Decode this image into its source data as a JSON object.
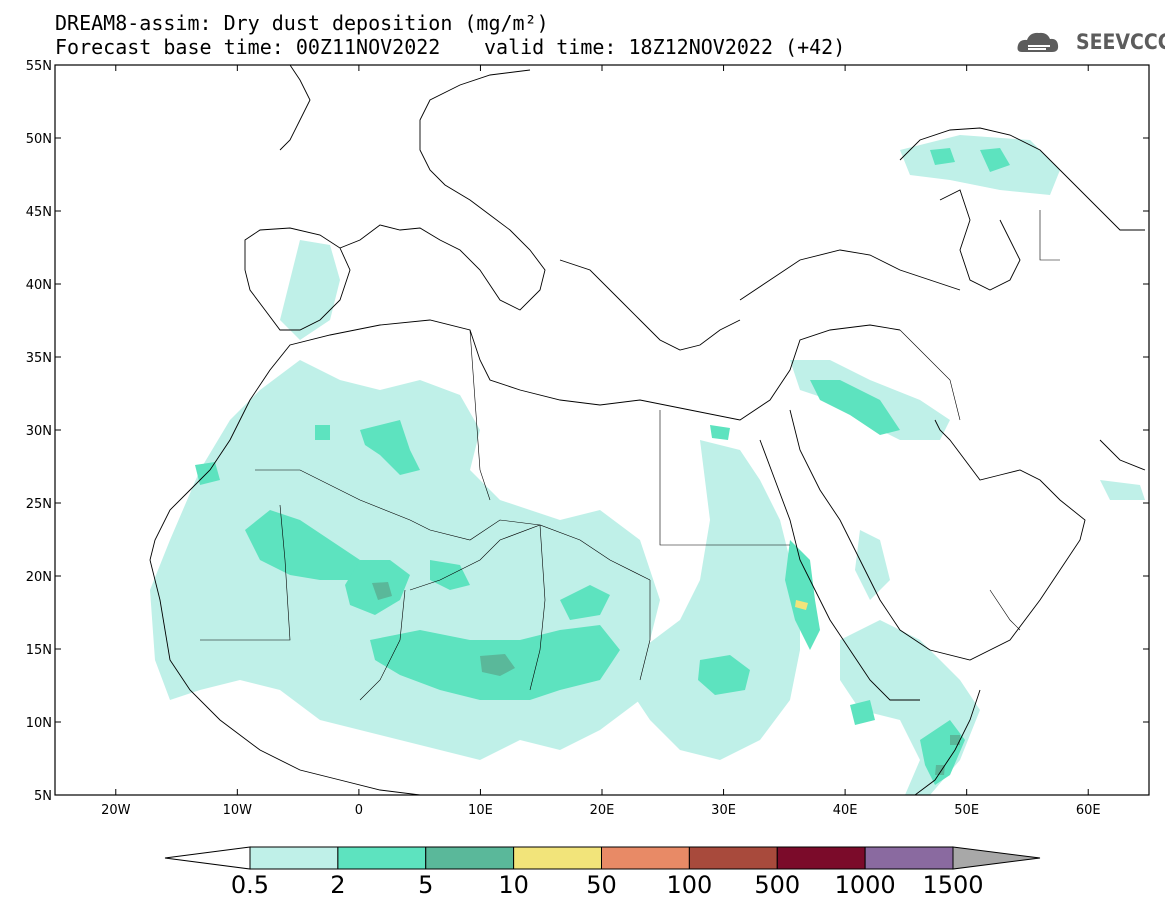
{
  "header": {
    "title_line1": "DREAM8-assim: Dry dust deposition (mg/m²)",
    "title_line2": "Forecast base time: 00Z11NOV2022",
    "valid_time": "valid time: 18Z12NOV2022 (+42)",
    "logo_text": "SEEVCCC",
    "logo_icon": "cloud-icon"
  },
  "map": {
    "type": "contour-map",
    "lon_range": [
      -25,
      65
    ],
    "lat_range": [
      5,
      55
    ],
    "lat_ticks": [
      {
        "value": 55,
        "label": "55N"
      },
      {
        "value": 50,
        "label": "50N"
      },
      {
        "value": 45,
        "label": "45N"
      },
      {
        "value": 40,
        "label": "40N"
      },
      {
        "value": 35,
        "label": "35N"
      },
      {
        "value": 30,
        "label": "30N"
      },
      {
        "value": 25,
        "label": "25N"
      },
      {
        "value": 20,
        "label": "20N"
      },
      {
        "value": 15,
        "label": "15N"
      },
      {
        "value": 10,
        "label": "10N"
      },
      {
        "value": 5,
        "label": "5N"
      }
    ],
    "lon_ticks": [
      {
        "value": -20,
        "label": "20W"
      },
      {
        "value": -10,
        "label": "10W"
      },
      {
        "value": 0,
        "label": "0"
      },
      {
        "value": 10,
        "label": "10E"
      },
      {
        "value": 20,
        "label": "20E"
      },
      {
        "value": 30,
        "label": "30E"
      },
      {
        "value": 40,
        "label": "40E"
      },
      {
        "value": 50,
        "label": "50E"
      },
      {
        "value": 60,
        "label": "60E"
      }
    ]
  },
  "colorbar": {
    "levels": [
      "0.5",
      "2",
      "5",
      "10",
      "50",
      "100",
      "500",
      "1000",
      "1500"
    ],
    "colors": [
      "#ffffff",
      "#bff0e8",
      "#5de3bf",
      "#5ab89a",
      "#f2e47a",
      "#e88a66",
      "#a84a3c",
      "#7b0b2a",
      "#8a6aa0",
      "#a8a8a8"
    ]
  }
}
